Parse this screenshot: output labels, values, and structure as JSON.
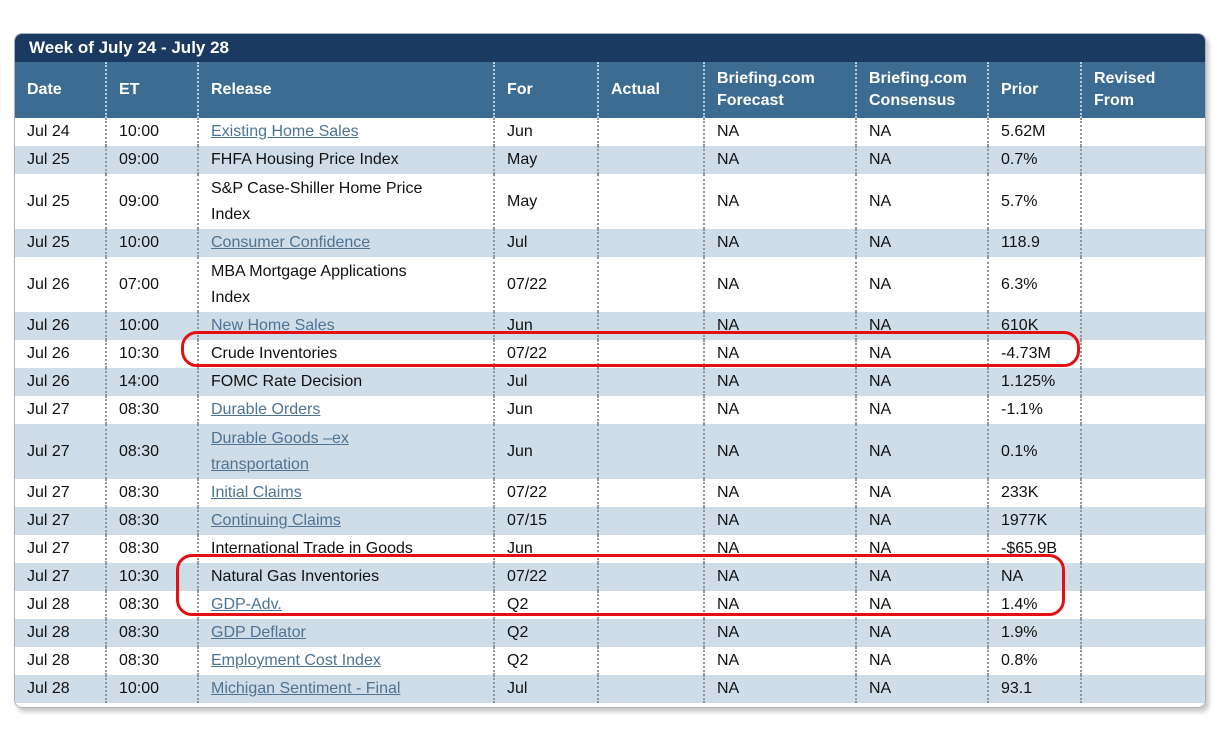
{
  "title": "Week of July 24 - July 28",
  "colors": {
    "title_bar_bg": "#1a3a61",
    "header_bg": "#3d6c92",
    "alt_row_bg": "#cfdde8",
    "link_text": "#4d7494",
    "annotation_red": "#e50f12"
  },
  "table": {
    "columns": [
      "Date",
      "ET",
      "Release",
      "For",
      "Actual",
      "Briefing.com\nForecast",
      "Briefing.com\nConsensus",
      "Prior",
      "Revised\nFrom"
    ],
    "rows": [
      {
        "date": "Jul 24",
        "et": "10:00",
        "release": "Existing Home Sales",
        "link": true,
        "tall": false,
        "for": "Jun",
        "actual": "",
        "forecast": "NA",
        "consensus": "NA",
        "prior": "5.62M",
        "revised": ""
      },
      {
        "date": "Jul 25",
        "et": "09:00",
        "release": "FHFA Housing Price Index",
        "link": false,
        "tall": false,
        "for": "May",
        "actual": "",
        "forecast": "NA",
        "consensus": "NA",
        "prior": "0.7%",
        "revised": ""
      },
      {
        "date": "Jul 25",
        "et": "09:00",
        "release": "S&P Case-Shiller Home Price\nIndex",
        "link": false,
        "tall": true,
        "for": "May",
        "actual": "",
        "forecast": "NA",
        "consensus": "NA",
        "prior": "5.7%",
        "revised": ""
      },
      {
        "date": "Jul 25",
        "et": "10:00",
        "release": "Consumer Confidence",
        "link": true,
        "tall": false,
        "for": "Jul",
        "actual": "",
        "forecast": "NA",
        "consensus": "NA",
        "prior": "118.9",
        "revised": ""
      },
      {
        "date": "Jul 26",
        "et": "07:00",
        "release": "MBA Mortgage Applications\nIndex",
        "link": false,
        "tall": true,
        "for": "07/22",
        "actual": "",
        "forecast": "NA",
        "consensus": "NA",
        "prior": "6.3%",
        "revised": ""
      },
      {
        "date": "Jul 26",
        "et": "10:00",
        "release": "New Home Sales",
        "link": true,
        "tall": false,
        "for": "Jun",
        "actual": "",
        "forecast": "NA",
        "consensus": "NA",
        "prior": "610K",
        "revised": ""
      },
      {
        "date": "Jul 26",
        "et": "10:30",
        "release": "Crude Inventories",
        "link": false,
        "tall": false,
        "for": "07/22",
        "actual": "",
        "forecast": "NA",
        "consensus": "NA",
        "prior": "-4.73M",
        "revised": ""
      },
      {
        "date": "Jul 26",
        "et": "14:00",
        "release": "FOMC Rate Decision",
        "link": false,
        "tall": false,
        "for": "Jul",
        "actual": "",
        "forecast": "NA",
        "consensus": "NA",
        "prior": "1.125%",
        "revised": ""
      },
      {
        "date": "Jul 27",
        "et": "08:30",
        "release": "Durable Orders",
        "link": true,
        "tall": false,
        "for": "Jun",
        "actual": "",
        "forecast": "NA",
        "consensus": "NA",
        "prior": "-1.1%",
        "revised": ""
      },
      {
        "date": "Jul 27",
        "et": "08:30",
        "release": "Durable Goods –ex\ntransportation",
        "link": true,
        "tall": true,
        "for": "Jun",
        "actual": "",
        "forecast": "NA",
        "consensus": "NA",
        "prior": "0.1%",
        "revised": ""
      },
      {
        "date": "Jul 27",
        "et": "08:30",
        "release": "Initial Claims",
        "link": true,
        "tall": false,
        "for": "07/22",
        "actual": "",
        "forecast": "NA",
        "consensus": "NA",
        "prior": "233K",
        "revised": ""
      },
      {
        "date": "Jul 27",
        "et": "08:30",
        "release": "Continuing Claims",
        "link": true,
        "tall": false,
        "for": "07/15",
        "actual": "",
        "forecast": "NA",
        "consensus": "NA",
        "prior": "1977K",
        "revised": ""
      },
      {
        "date": "Jul 27",
        "et": "08:30",
        "release": "International Trade in Goods",
        "link": false,
        "tall": false,
        "for": "Jun",
        "actual": "",
        "forecast": "NA",
        "consensus": "NA",
        "prior": "-$65.9B",
        "revised": ""
      },
      {
        "date": "Jul 27",
        "et": "10:30",
        "release": "Natural Gas Inventories",
        "link": false,
        "tall": false,
        "for": "07/22",
        "actual": "",
        "forecast": "NA",
        "consensus": "NA",
        "prior": "NA",
        "revised": ""
      },
      {
        "date": "Jul 28",
        "et": "08:30",
        "release": "GDP-Adv.",
        "link": true,
        "tall": false,
        "for": "Q2",
        "actual": "",
        "forecast": "NA",
        "consensus": "NA",
        "prior": "1.4%",
        "revised": ""
      },
      {
        "date": "Jul 28",
        "et": "08:30",
        "release": "GDP Deflator",
        "link": true,
        "tall": false,
        "for": "Q2",
        "actual": "",
        "forecast": "NA",
        "consensus": "NA",
        "prior": "1.9%",
        "revised": ""
      },
      {
        "date": "Jul 28",
        "et": "08:30",
        "release": "Employment Cost Index",
        "link": true,
        "tall": false,
        "for": "Q2",
        "actual": "",
        "forecast": "NA",
        "consensus": "NA",
        "prior": "0.8%",
        "revised": ""
      },
      {
        "date": "Jul 28",
        "et": "10:00",
        "release": "Michigan Sentiment - Final",
        "link": true,
        "tall": false,
        "for": "Jul",
        "actual": "",
        "forecast": "NA",
        "consensus": "NA",
        "prior": "93.1",
        "revised": ""
      }
    ]
  },
  "annotations": [
    {
      "id": "fomc",
      "target": "FOMC Rate Decision row",
      "color": "#e50f12"
    },
    {
      "id": "gdp",
      "target": "GDP-Adv. and GDP Deflator rows",
      "color": "#e50f12"
    }
  ]
}
